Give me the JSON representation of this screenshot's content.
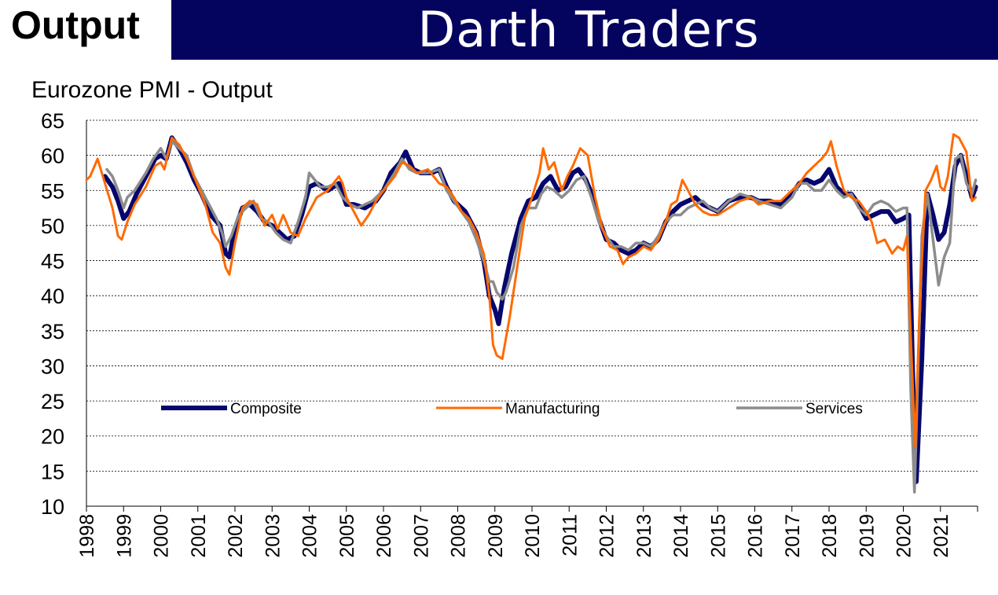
{
  "header": {
    "label": "Output",
    "brand": "Darth Traders"
  },
  "colors": {
    "banner": "#04045f",
    "composite": "#06066e",
    "manufacturing": "#ff6a00",
    "services": "#8c8c8c"
  },
  "chart_data": {
    "type": "line",
    "title": "Eurozone PMI - Output",
    "xlabel": "",
    "ylabel": "",
    "ylim": [
      10,
      65
    ],
    "xlim": [
      1998.0,
      2022.0
    ],
    "yticks": [
      "65",
      "60",
      "55",
      "50",
      "45",
      "40",
      "35",
      "30",
      "25",
      "20",
      "15",
      "10"
    ],
    "xticks": [
      "1998",
      "1999",
      "2000",
      "2001",
      "2002",
      "2003",
      "2004",
      "2005",
      "2006",
      "2007",
      "2008",
      "2009",
      "2010",
      "2011",
      "2012",
      "2013",
      "2014",
      "2015",
      "2016",
      "2017",
      "2018",
      "2019",
      "2020",
      "2021"
    ],
    "grid": "horizontal dotted",
    "legend": "inside, lower middle",
    "series": [
      {
        "name": "Composite",
        "x": [
          1998.5,
          1998.7,
          1998.85,
          1999.0,
          1999.15,
          1999.35,
          1999.6,
          1999.85,
          2000.0,
          2000.15,
          2000.3,
          2000.5,
          2000.7,
          2000.9,
          2001.1,
          2001.35,
          2001.6,
          2001.75,
          2001.85,
          2002.0,
          2002.2,
          2002.4,
          2002.6,
          2002.8,
          2003.0,
          2003.2,
          2003.4,
          2003.6,
          2003.8,
          2004.0,
          2004.2,
          2004.5,
          2004.8,
          2005.0,
          2005.2,
          2005.5,
          2005.8,
          2006.0,
          2006.2,
          2006.45,
          2006.6,
          2006.8,
          2007.0,
          2007.3,
          2007.5,
          2007.7,
          2007.9,
          2008.2,
          2008.5,
          2008.7,
          2008.85,
          2009.0,
          2009.1,
          2009.25,
          2009.45,
          2009.7,
          2009.9,
          2010.1,
          2010.3,
          2010.5,
          2010.7,
          2010.9,
          2011.1,
          2011.25,
          2011.45,
          2011.65,
          2011.8,
          2012.0,
          2012.2,
          2012.4,
          2012.6,
          2012.8,
          2013.0,
          2013.2,
          2013.4,
          2013.6,
          2013.8,
          2014.0,
          2014.2,
          2014.4,
          2014.6,
          2014.8,
          2015.0,
          2015.3,
          2015.6,
          2015.9,
          2016.1,
          2016.4,
          2016.7,
          2017.0,
          2017.2,
          2017.4,
          2017.6,
          2017.8,
          2018.0,
          2018.2,
          2018.4,
          2018.6,
          2018.8,
          2019.0,
          2019.2,
          2019.4,
          2019.6,
          2019.8,
          2020.0,
          2020.15,
          2020.25,
          2020.35,
          2020.5,
          2020.65,
          2020.8,
          2020.95,
          2021.1,
          2021.25,
          2021.4,
          2021.55,
          2021.7,
          2021.85,
          2021.95
        ],
        "y": [
          57.0,
          55.5,
          53.5,
          51.0,
          52.0,
          54.5,
          57.0,
          59.5,
          60.0,
          59.5,
          62.5,
          61.0,
          59.0,
          56.5,
          54.5,
          51.5,
          50.0,
          46.0,
          45.5,
          49.5,
          52.5,
          53.0,
          52.0,
          50.5,
          50.0,
          49.0,
          48.0,
          48.5,
          51.5,
          55.5,
          56.0,
          55.0,
          56.0,
          53.0,
          53.0,
          52.5,
          53.5,
          55.0,
          57.5,
          59.0,
          60.5,
          58.0,
          57.5,
          57.5,
          58.0,
          55.5,
          53.5,
          52.0,
          49.0,
          45.0,
          40.0,
          38.0,
          36.0,
          41.0,
          46.0,
          51.0,
          53.5,
          54.0,
          56.0,
          57.0,
          55.0,
          55.5,
          57.5,
          58.0,
          56.5,
          54.0,
          51.0,
          48.0,
          47.5,
          46.5,
          46.0,
          46.5,
          47.5,
          47.0,
          48.0,
          50.5,
          52.0,
          53.0,
          53.5,
          54.0,
          53.0,
          52.5,
          52.0,
          53.5,
          54.0,
          54.0,
          53.5,
          53.5,
          53.0,
          54.5,
          56.0,
          56.5,
          56.0,
          56.5,
          58.0,
          55.5,
          54.5,
          54.5,
          53.0,
          51.0,
          51.5,
          52.0,
          52.0,
          50.5,
          51.0,
          51.5,
          29.5,
          13.5,
          31.0,
          54.5,
          51.5,
          48.0,
          49.0,
          53.0,
          58.5,
          60.0,
          57.0,
          54.0,
          55.5
        ]
      },
      {
        "name": "Manufacturing",
        "x": [
          1998.0,
          1998.1,
          1998.3,
          1998.5,
          1998.7,
          1998.85,
          1998.95,
          1999.1,
          1999.3,
          1999.6,
          1999.85,
          2000.0,
          2000.1,
          2000.3,
          2000.5,
          2000.7,
          2000.9,
          2001.2,
          2001.4,
          2001.6,
          2001.75,
          2001.85,
          2002.0,
          2002.2,
          2002.4,
          2002.6,
          2002.8,
          2003.0,
          2003.15,
          2003.3,
          2003.5,
          2003.7,
          2003.9,
          2004.2,
          2004.5,
          2004.8,
          2004.9,
          2005.0,
          2005.2,
          2005.4,
          2005.6,
          2005.8,
          2006.0,
          2006.3,
          2006.5,
          2006.7,
          2006.9,
          2007.2,
          2007.5,
          2007.7,
          2007.9,
          2008.1,
          2008.3,
          2008.5,
          2008.7,
          2008.85,
          2008.95,
          2009.05,
          2009.2,
          2009.4,
          2009.6,
          2009.8,
          2010.0,
          2010.2,
          2010.3,
          2010.45,
          2010.6,
          2010.8,
          2010.95,
          2011.1,
          2011.3,
          2011.5,
          2011.7,
          2011.9,
          2012.1,
          2012.3,
          2012.45,
          2012.6,
          2012.8,
          2013.0,
          2013.2,
          2013.4,
          2013.6,
          2013.75,
          2013.9,
          2014.05,
          2014.2,
          2014.4,
          2014.6,
          2014.8,
          2015.0,
          2015.3,
          2015.6,
          2015.9,
          2016.1,
          2016.4,
          2016.7,
          2016.9,
          2017.2,
          2017.4,
          2017.6,
          2017.8,
          2017.95,
          2018.05,
          2018.2,
          2018.4,
          2018.6,
          2018.8,
          2019.0,
          2019.15,
          2019.3,
          2019.5,
          2019.7,
          2019.85,
          2020.0,
          2020.1,
          2020.2,
          2020.32,
          2020.45,
          2020.6,
          2020.75,
          2020.9,
          2021.0,
          2021.1,
          2021.2,
          2021.35,
          2021.5,
          2021.7,
          2021.85,
          2021.95
        ],
        "y": [
          56.5,
          57.0,
          59.5,
          56.0,
          52.5,
          48.5,
          48.0,
          50.5,
          53.0,
          55.5,
          58.5,
          59.0,
          58.0,
          62.5,
          61.5,
          59.5,
          57.0,
          53.0,
          49.0,
          47.5,
          44.0,
          43.0,
          47.5,
          52.5,
          53.5,
          53.0,
          50.0,
          51.5,
          49.5,
          51.5,
          49.0,
          48.5,
          51.0,
          54.0,
          55.0,
          57.0,
          56.0,
          54.0,
          52.0,
          50.0,
          51.5,
          53.5,
          55.0,
          57.0,
          59.0,
          58.5,
          57.5,
          58.0,
          56.0,
          55.5,
          54.0,
          52.0,
          51.0,
          49.0,
          46.0,
          40.0,
          33.0,
          31.5,
          31.0,
          37.0,
          44.0,
          51.0,
          54.0,
          57.5,
          61.0,
          58.0,
          59.0,
          55.0,
          57.0,
          58.5,
          61.0,
          60.0,
          54.0,
          49.5,
          47.0,
          46.5,
          44.5,
          45.5,
          46.0,
          47.0,
          46.5,
          48.0,
          50.5,
          53.0,
          53.5,
          56.5,
          55.0,
          53.0,
          52.0,
          51.5,
          51.5,
          52.5,
          53.5,
          54.0,
          53.0,
          53.5,
          53.5,
          54.5,
          56.0,
          57.5,
          58.5,
          59.5,
          60.5,
          62.0,
          58.5,
          55.0,
          54.0,
          53.5,
          52.0,
          50.5,
          47.5,
          48.0,
          46.0,
          47.0,
          46.5,
          48.5,
          34.0,
          18.5,
          40.0,
          55.0,
          56.5,
          58.5,
          55.5,
          55.0,
          57.0,
          63.0,
          62.5,
          60.5,
          53.5,
          54.0
        ]
      },
      {
        "name": "Services",
        "x": [
          1998.55,
          1998.7,
          1998.85,
          1999.0,
          1999.1,
          1999.3,
          1999.6,
          1999.8,
          2000.0,
          2000.15,
          2000.3,
          2000.5,
          2000.7,
          2000.9,
          2001.1,
          2001.3,
          2001.5,
          2001.65,
          2001.75,
          2001.9,
          2002.1,
          2002.3,
          2002.5,
          2002.7,
          2002.9,
          2003.1,
          2003.3,
          2003.5,
          2003.7,
          2003.9,
          2004.0,
          2004.15,
          2004.3,
          2004.5,
          2004.7,
          2004.9,
          2005.1,
          2005.3,
          2005.5,
          2005.7,
          2006.0,
          2006.3,
          2006.5,
          2006.7,
          2006.9,
          2007.2,
          2007.5,
          2007.7,
          2007.9,
          2008.1,
          2008.3,
          2008.5,
          2008.7,
          2008.85,
          2008.95,
          2009.05,
          2009.2,
          2009.3,
          2009.5,
          2009.7,
          2009.9,
          2010.1,
          2010.25,
          2010.4,
          2010.6,
          2010.8,
          2011.0,
          2011.2,
          2011.4,
          2011.6,
          2011.8,
          2012.0,
          2012.2,
          2012.4,
          2012.6,
          2012.8,
          2013.0,
          2013.2,
          2013.4,
          2013.6,
          2013.8,
          2014.0,
          2014.2,
          2014.4,
          2014.6,
          2014.8,
          2015.0,
          2015.3,
          2015.6,
          2015.9,
          2016.1,
          2016.4,
          2016.7,
          2017.0,
          2017.2,
          2017.4,
          2017.6,
          2017.8,
          2018.0,
          2018.2,
          2018.4,
          2018.6,
          2018.8,
          2019.0,
          2019.2,
          2019.4,
          2019.6,
          2019.8,
          2020.0,
          2020.1,
          2020.2,
          2020.3,
          2020.4,
          2020.5,
          2020.65,
          2020.8,
          2020.95,
          2021.1,
          2021.25,
          2021.4,
          2021.55,
          2021.7,
          2021.85,
          2021.95
        ],
        "y": [
          58.0,
          57.0,
          55.0,
          52.5,
          54.0,
          55.0,
          57.5,
          59.5,
          61.0,
          59.5,
          62.0,
          61.0,
          60.0,
          57.0,
          55.0,
          53.0,
          51.0,
          49.0,
          47.0,
          48.5,
          51.5,
          52.5,
          53.5,
          51.0,
          50.5,
          49.0,
          48.0,
          47.5,
          50.5,
          54.0,
          57.5,
          56.5,
          55.5,
          55.5,
          56.0,
          54.0,
          53.0,
          52.5,
          53.0,
          53.5,
          55.0,
          57.5,
          59.5,
          58.0,
          57.5,
          57.5,
          58.0,
          55.0,
          53.5,
          52.0,
          50.5,
          48.0,
          45.0,
          42.0,
          42.0,
          40.5,
          39.5,
          40.5,
          44.0,
          50.0,
          52.5,
          52.5,
          54.5,
          55.5,
          55.0,
          54.0,
          55.0,
          56.5,
          57.0,
          54.0,
          50.5,
          48.5,
          47.0,
          47.0,
          46.5,
          47.5,
          47.5,
          47.0,
          48.5,
          50.5,
          51.5,
          51.5,
          52.5,
          53.0,
          53.5,
          52.5,
          52.0,
          53.5,
          54.5,
          54.0,
          53.5,
          53.0,
          52.5,
          54.0,
          56.0,
          56.0,
          55.0,
          55.0,
          56.5,
          55.0,
          54.0,
          54.5,
          52.5,
          51.5,
          53.0,
          53.5,
          53.0,
          52.0,
          52.5,
          52.5,
          26.5,
          12.0,
          30.0,
          48.5,
          54.5,
          48.0,
          41.5,
          45.5,
          47.5,
          59.5,
          60.0,
          56.0,
          54.5,
          56.5
        ]
      }
    ]
  }
}
